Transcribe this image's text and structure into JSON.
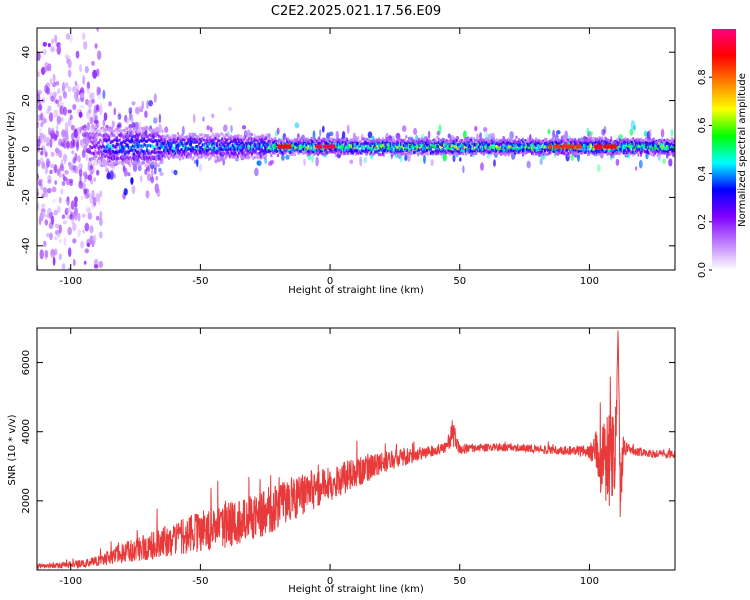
{
  "title": "C2E2.2025.021.17.56.E09",
  "colors": {
    "snr_line": "#e83a3a",
    "axis": "#000000",
    "background": "#ffffff"
  },
  "chart_data": [
    {
      "type": "heatmap",
      "title": "C2E2.2025.021.17.56.E09",
      "xlabel": "Height of straight line (km)",
      "ylabel": "Frequency (Hz)",
      "xlim": [
        -113,
        133
      ],
      "ylim": [
        -50,
        50
      ],
      "x_ticks": [
        -100,
        -50,
        0,
        50,
        100
      ],
      "x_tick_labels": [
        "-100",
        "-50",
        "0",
        "50",
        "100"
      ],
      "y_ticks": [
        -40,
        -20,
        0,
        20,
        40
      ],
      "y_tick_labels": [
        "-40",
        "-20",
        "0",
        "20",
        "40"
      ],
      "colorbar": {
        "label": "Normalized spectral amplitude",
        "range": [
          0,
          1
        ],
        "ticks": [
          0.0,
          0.2,
          0.4,
          0.6,
          0.8
        ],
        "tick_labels": [
          "0.0",
          "0.2",
          "0.4",
          "0.6",
          "0.8"
        ],
        "colormap": [
          "#ffffff",
          "#c080ff",
          "#8000ff",
          "#0000ff",
          "#00ffff",
          "#00ff00",
          "#ffff00",
          "#ff8000",
          "#ff0000",
          "#ff0080"
        ]
      },
      "band": {
        "center_freq_hz": 1,
        "regions": [
          {
            "x_start": -113,
            "x_end": -88,
            "spread_hz": 50,
            "amplitude": 0.25
          },
          {
            "x_start": -88,
            "x_end": -65,
            "spread_hz": 8,
            "amplitude": 0.4
          },
          {
            "x_start": -65,
            "x_end": -25,
            "spread_hz": 5,
            "amplitude": 0.45
          },
          {
            "x_start": -25,
            "x_end": 133,
            "spread_hz": 3,
            "amplitude": 0.6
          }
        ],
        "peak_regions": [
          {
            "x_start": -20,
            "x_end": -15,
            "amplitude": 0.9
          },
          {
            "x_start": -5,
            "x_end": 2,
            "amplitude": 0.95
          },
          {
            "x_start": 85,
            "x_end": 97,
            "amplitude": 0.85
          },
          {
            "x_start": 102,
            "x_end": 110,
            "amplitude": 0.9
          }
        ]
      }
    },
    {
      "type": "line",
      "xlabel": "Height of straight line (km)",
      "ylabel": "SNR (10 * v/v)",
      "xlim": [
        -113,
        133
      ],
      "ylim": [
        0,
        7000
      ],
      "x_ticks": [
        -100,
        -50,
        0,
        50,
        100
      ],
      "x_tick_labels": [
        "-100",
        "-50",
        "0",
        "50",
        "100"
      ],
      "y_ticks": [
        2000,
        4000,
        6000
      ],
      "y_tick_labels": [
        "2000",
        "4000",
        "6000"
      ],
      "envelope": {
        "x": [
          -113,
          -100,
          -90,
          -80,
          -70,
          -60,
          -50,
          -40,
          -30,
          -20,
          -10,
          0,
          10,
          20,
          30,
          40,
          45,
          47,
          50,
          60,
          70,
          80,
          90,
          95,
          100,
          103,
          105,
          107,
          109,
          110,
          111,
          112,
          113,
          115,
          120,
          125,
          133
        ],
        "y": [
          100,
          150,
          250,
          500,
          700,
          900,
          1100,
          1300,
          1500,
          1800,
          2200,
          2500,
          2800,
          3100,
          3300,
          3450,
          3550,
          4000,
          3500,
          3550,
          3550,
          3500,
          3450,
          3450,
          3400,
          3300,
          3200,
          3000,
          2800,
          3500,
          6800,
          2000,
          3600,
          3500,
          3400,
          3350,
          3350
        ],
        "noise": [
          80,
          100,
          150,
          300,
          400,
          500,
          600,
          650,
          650,
          650,
          600,
          500,
          450,
          300,
          250,
          150,
          150,
          400,
          150,
          120,
          120,
          120,
          120,
          150,
          200,
          800,
          1200,
          1500,
          1800,
          1500,
          400,
          1500,
          300,
          150,
          120,
          120,
          120
        ]
      }
    }
  ]
}
